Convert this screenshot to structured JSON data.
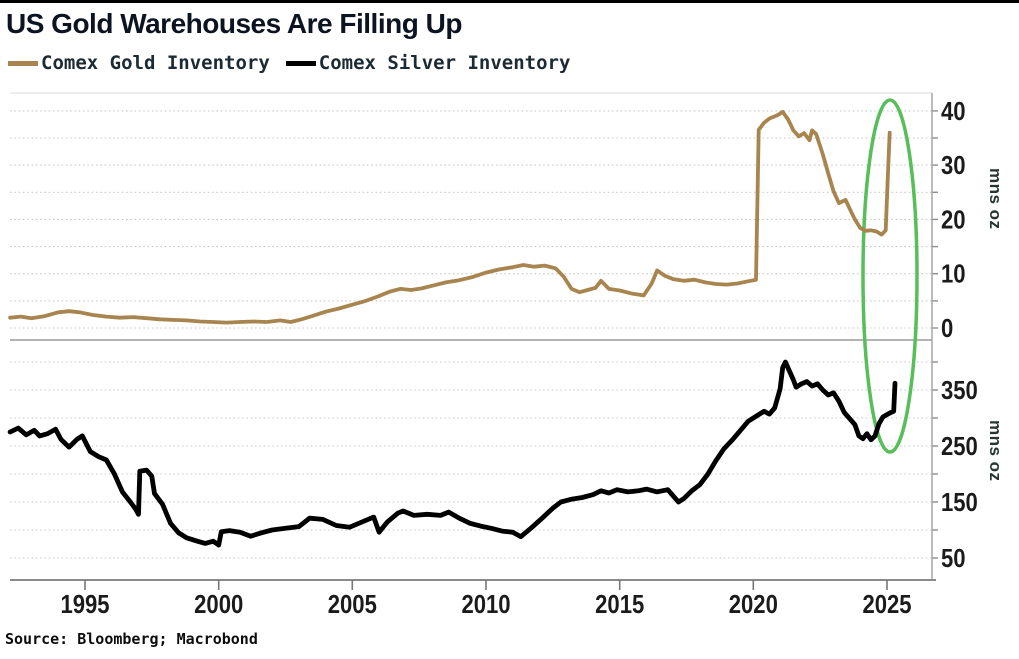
{
  "title": "US Gold Warehouses Are Filling Up",
  "source": "Source: Bloomberg; Macrobond",
  "colors": {
    "gold": "#a8854f",
    "silver": "#000000",
    "highlight": "#57be59",
    "grid": "#c7c7c7",
    "axis": "#8f8f8f",
    "title_text": "#0c1422"
  },
  "legend": [
    {
      "label": "Comex Gold Inventory",
      "color": "#a8854f"
    },
    {
      "label": "Comex Silver Inventory",
      "color": "#000000"
    }
  ],
  "annotations": [
    {
      "type": "ellipse",
      "color": "#57be59",
      "highlights": "2025 inventory spike in both panels"
    }
  ],
  "chart_data": [
    {
      "type": "line",
      "title": "US Gold Warehouses Are Filling Up",
      "series_name": "Comex Gold Inventory",
      "color": "#a8854f",
      "ylabel": "mns oz",
      "legend_position": "top-left",
      "grid": "dotted-horizontal",
      "x_range": [
        1992.2,
        2026.7
      ],
      "ylim": [
        0,
        42
      ],
      "grid_values": [
        0,
        5,
        10,
        15,
        20,
        25,
        30,
        35,
        40
      ],
      "y_ticks": [
        40,
        30,
        20,
        10,
        0
      ],
      "y_tick_labels": [
        "40",
        "30",
        "20",
        "10",
        "0"
      ],
      "x_ticks": [
        1995,
        2000,
        2005,
        2010,
        2015,
        2020,
        2025
      ],
      "x_tick_labels": [
        "1995",
        "2000",
        "2005",
        "2010",
        "2015",
        "2020",
        "2025"
      ],
      "x": [
        1992.2,
        1992.6,
        1993,
        1993.5,
        1994,
        1994.4,
        1994.8,
        1995.3,
        1995.8,
        1996.3,
        1996.8,
        1997.3,
        1997.8,
        1998.3,
        1998.8,
        1999.3,
        1999.8,
        2000.3,
        2000.8,
        2001.3,
        2001.8,
        2002.3,
        2002.7,
        2003.1,
        2003.5,
        2004,
        2004.5,
        2005,
        2005.5,
        2006,
        2006.4,
        2006.8,
        2007.2,
        2007.6,
        2008,
        2008.5,
        2009,
        2009.5,
        2010,
        2010.5,
        2011,
        2011.4,
        2011.8,
        2012.2,
        2012.6,
        2012.9,
        2013.2,
        2013.5,
        2013.8,
        2014.1,
        2014.3,
        2014.6,
        2015,
        2015.5,
        2015.9,
        2016.2,
        2016.4,
        2016.7,
        2017,
        2017.4,
        2017.8,
        2018.2,
        2018.6,
        2019,
        2019.4,
        2019.8,
        2020.1,
        2020.2,
        2020.4,
        2020.6,
        2020.9,
        2021.1,
        2021.3,
        2021.5,
        2021.7,
        2021.9,
        2022.1,
        2022.2,
        2022.35,
        2022.6,
        2022.8,
        2023,
        2023.2,
        2023.45,
        2023.6,
        2023.8,
        2024,
        2024.2,
        2024.4,
        2024.6,
        2024.8,
        2024.95,
        2025.05,
        2025.1
      ],
      "values": [
        1.9,
        2.1,
        1.8,
        2.2,
        2.9,
        3.1,
        2.9,
        2.4,
        2.1,
        1.9,
        2,
        1.8,
        1.6,
        1.5,
        1.4,
        1.2,
        1.1,
        1,
        1.1,
        1.2,
        1.1,
        1.4,
        1.1,
        1.6,
        2.2,
        3,
        3.6,
        4.3,
        5,
        5.9,
        6.7,
        7.2,
        7,
        7.3,
        7.8,
        8.4,
        8.8,
        9.4,
        10.2,
        10.8,
        11.2,
        11.6,
        11.3,
        11.5,
        11,
        9.5,
        7.2,
        6.6,
        7,
        7.4,
        8.7,
        7.2,
        6.9,
        6.3,
        6,
        8.2,
        10.6,
        9.6,
        9,
        8.7,
        8.9,
        8.4,
        8.1,
        8,
        8.2,
        8.6,
        8.9,
        36.5,
        37.8,
        38.6,
        39.2,
        39.8,
        38.4,
        36.4,
        35.3,
        35.9,
        34.6,
        36.4,
        35.7,
        32,
        28.5,
        25.2,
        23,
        23.6,
        22,
        20,
        18.4,
        17.9,
        18,
        17.8,
        17.2,
        18,
        30,
        36
      ]
    },
    {
      "type": "line",
      "series_name": "Comex Silver Inventory",
      "color": "#000000",
      "ylabel": "mns oz",
      "grid": "dotted-horizontal",
      "x_range": [
        1992.2,
        2026.7
      ],
      "ylim": [
        10,
        430
      ],
      "grid_values": [
        50,
        100,
        150,
        200,
        250,
        300,
        350,
        400
      ],
      "y_ticks": [
        350,
        250,
        150,
        50
      ],
      "y_tick_labels": [
        "350",
        "250",
        "150",
        "50"
      ],
      "x_ticks": [
        1995,
        2000,
        2005,
        2010,
        2015,
        2020,
        2025
      ],
      "x_tick_labels": [
        "1995",
        "2000",
        "2005",
        "2010",
        "2015",
        "2020",
        "2025"
      ],
      "x": [
        1992.2,
        1992.5,
        1992.8,
        1993.1,
        1993.3,
        1993.6,
        1993.9,
        1994.1,
        1994.4,
        1994.7,
        1994.9,
        1995.2,
        1995.5,
        1995.8,
        1996.1,
        1996.4,
        1996.7,
        1996.9,
        1997,
        1997.05,
        1997.3,
        1997.5,
        1997.6,
        1997.9,
        1998.2,
        1998.5,
        1998.8,
        1999.2,
        1999.5,
        1999.8,
        2000,
        2000.1,
        2000.4,
        2000.8,
        2001.2,
        2001.6,
        2002,
        2002.5,
        2003,
        2003.4,
        2003.9,
        2004.4,
        2004.9,
        2005.4,
        2005.8,
        2006,
        2006.3,
        2006.7,
        2006.9,
        2007.3,
        2007.8,
        2008.3,
        2008.6,
        2009,
        2009.4,
        2009.8,
        2010.2,
        2010.6,
        2011,
        2011.3,
        2011.7,
        2012.1,
        2012.5,
        2012.8,
        2013.2,
        2013.6,
        2014,
        2014.3,
        2014.6,
        2014.9,
        2015.3,
        2015.7,
        2016,
        2016.4,
        2016.8,
        2017,
        2017.2,
        2017.4,
        2017.7,
        2018,
        2018.3,
        2018.6,
        2018.9,
        2019.2,
        2019.5,
        2019.8,
        2020.1,
        2020.4,
        2020.6,
        2020.8,
        2021,
        2021.1,
        2021.2,
        2021.35,
        2021.5,
        2021.6,
        2021.8,
        2022,
        2022.2,
        2022.4,
        2022.6,
        2022.8,
        2023,
        2023.2,
        2023.4,
        2023.6,
        2023.8,
        2023.95,
        2024.1,
        2024.25,
        2024.4,
        2024.55,
        2024.7,
        2024.85,
        2025,
        2025.15,
        2025.25,
        2025.3
      ],
      "values": [
        275,
        282,
        270,
        278,
        268,
        272,
        280,
        262,
        248,
        262,
        268,
        240,
        231,
        225,
        200,
        168,
        150,
        137,
        128,
        205,
        207,
        196,
        165,
        146,
        112,
        95,
        86,
        80,
        76,
        80,
        73,
        97,
        99,
        96,
        89,
        95,
        100,
        103,
        106,
        121,
        119,
        108,
        105,
        115,
        123,
        96,
        114,
        130,
        134,
        126,
        128,
        126,
        132,
        121,
        112,
        107,
        103,
        98,
        96,
        88,
        104,
        121,
        139,
        150,
        155,
        158,
        163,
        170,
        166,
        172,
        168,
        170,
        173,
        168,
        172,
        161,
        150,
        156,
        170,
        181,
        200,
        224,
        245,
        260,
        277,
        294,
        303,
        312,
        307,
        318,
        352,
        390,
        400,
        384,
        368,
        355,
        361,
        365,
        357,
        361,
        350,
        341,
        345,
        330,
        310,
        299,
        288,
        268,
        263,
        272,
        261,
        268,
        290,
        302,
        306,
        310,
        312,
        362
      ]
    }
  ]
}
